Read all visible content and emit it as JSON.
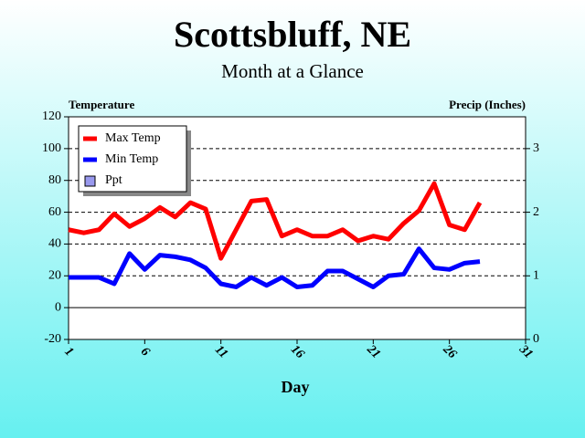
{
  "chart_data": {
    "type": "line",
    "title": "Scottsbluff, NE",
    "subtitle": "Month at a Glance",
    "y_label": "Temperature",
    "y2_label": "Precip (Inches)",
    "x_label": "Day",
    "x": [
      1,
      2,
      3,
      4,
      5,
      6,
      7,
      8,
      9,
      10,
      11,
      12,
      13,
      14,
      15,
      16,
      17,
      18,
      19,
      20,
      21,
      22,
      23,
      24,
      25,
      26,
      27,
      28
    ],
    "series": [
      {
        "name": "Max Temp",
        "color": "#ff0000",
        "values": [
          49,
          47,
          49,
          59,
          51,
          56,
          63,
          57,
          66,
          62,
          31,
          49,
          67,
          68,
          45,
          49,
          45,
          45,
          49,
          42,
          45,
          43,
          53,
          61,
          78,
          52,
          49,
          66
        ]
      },
      {
        "name": "Min Temp",
        "color": "#0000ff",
        "values": [
          19,
          19,
          19,
          15,
          34,
          24,
          33,
          32,
          30,
          25,
          15,
          13,
          19,
          14,
          19,
          13,
          14,
          23,
          23,
          18,
          13,
          20,
          21,
          37,
          25,
          24,
          28,
          29
        ]
      },
      {
        "name": "Ppt",
        "color": "#9999ee",
        "axis": "y2",
        "values": [
          null,
          null,
          null,
          null,
          null,
          null,
          null,
          null,
          null,
          null,
          null,
          null,
          null,
          null,
          null,
          null,
          null,
          null,
          null,
          null,
          null,
          null,
          null,
          null,
          null,
          null,
          null,
          null
        ]
      }
    ],
    "xlim": [
      1,
      31
    ],
    "xticks": [
      1,
      6,
      11,
      16,
      21,
      26,
      31
    ],
    "ylim": [
      -20,
      120
    ],
    "yticks": [
      -20,
      0,
      20,
      40,
      60,
      80,
      100,
      120
    ],
    "y2lim": [
      0,
      3.5
    ],
    "y2ticks": [
      0,
      1,
      2,
      3
    ],
    "grid": true,
    "legend": "top-left"
  }
}
